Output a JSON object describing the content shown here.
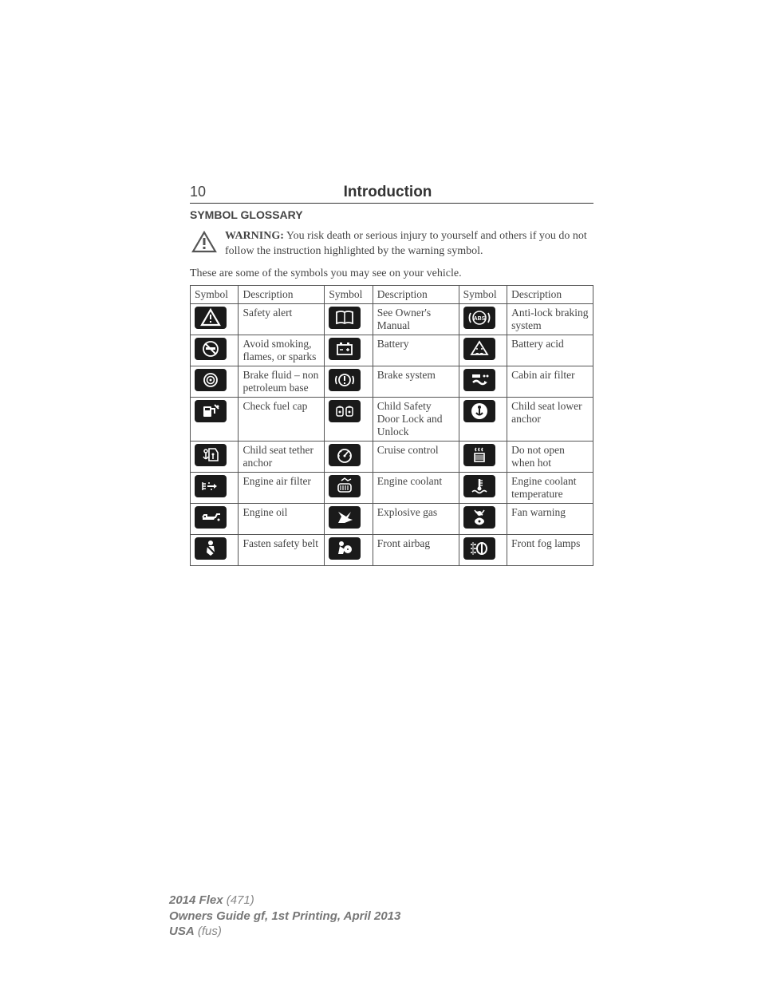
{
  "page_number": "10",
  "chapter_title": "Introduction",
  "section_heading": "SYMBOL GLOSSARY",
  "warning": {
    "label": "WARNING:",
    "text": " You risk death or serious injury to yourself and others if you do not follow the instruction highlighted by the warning symbol."
  },
  "intro_line": "These are some of the symbols you may see on your vehicle.",
  "table": {
    "headers": [
      "Symbol",
      "Description",
      "Symbol",
      "Description",
      "Symbol",
      "Description"
    ],
    "rows": [
      [
        {
          "icon": "safety-alert",
          "desc": "Safety alert"
        },
        {
          "icon": "owners-manual",
          "desc": "See Owner's Manual"
        },
        {
          "icon": "abs",
          "desc": "Anti-lock braking system"
        }
      ],
      [
        {
          "icon": "no-smoking",
          "desc": "Avoid smoking, flames, or sparks"
        },
        {
          "icon": "battery",
          "desc": "Battery"
        },
        {
          "icon": "battery-acid",
          "desc": "Battery acid"
        }
      ],
      [
        {
          "icon": "brake-fluid",
          "desc": "Brake fluid – non petroleum base"
        },
        {
          "icon": "brake-system",
          "desc": "Brake system"
        },
        {
          "icon": "cabin-air-filter",
          "desc": "Cabin air filter"
        }
      ],
      [
        {
          "icon": "fuel-cap",
          "desc": "Check fuel cap"
        },
        {
          "icon": "child-lock",
          "desc": "Child Safety Door Lock and Unlock"
        },
        {
          "icon": "lower-anchor",
          "desc": "Child seat lower anchor"
        }
      ],
      [
        {
          "icon": "tether-anchor",
          "desc": "Child seat tether anchor"
        },
        {
          "icon": "cruise",
          "desc": "Cruise control"
        },
        {
          "icon": "hot",
          "desc": "Do not open when hot"
        }
      ],
      [
        {
          "icon": "air-filter",
          "desc": "Engine air filter"
        },
        {
          "icon": "coolant",
          "desc": "Engine coolant"
        },
        {
          "icon": "coolant-temp",
          "desc": "Engine coolant temperature"
        }
      ],
      [
        {
          "icon": "oil",
          "desc": "Engine oil"
        },
        {
          "icon": "explosive",
          "desc": "Explosive gas"
        },
        {
          "icon": "fan",
          "desc": "Fan warning"
        }
      ],
      [
        {
          "icon": "seatbelt",
          "desc": "Fasten safety belt"
        },
        {
          "icon": "airbag",
          "desc": "Front airbag"
        },
        {
          "icon": "fog",
          "desc": "Front fog lamps"
        }
      ]
    ]
  },
  "footer": {
    "line1_bold": "2014 Flex",
    "line1_rest": " (471)",
    "line2_bold": "Owners Guide gf, 1st Printing, April 2013",
    "line3_bold": "USA",
    "line3_rest": " (fus)"
  },
  "colors": {
    "text": "#444444",
    "border": "#555555",
    "icon_bg": "#1a1a1a",
    "icon_fg": "#ffffff",
    "footer": "#888888"
  }
}
